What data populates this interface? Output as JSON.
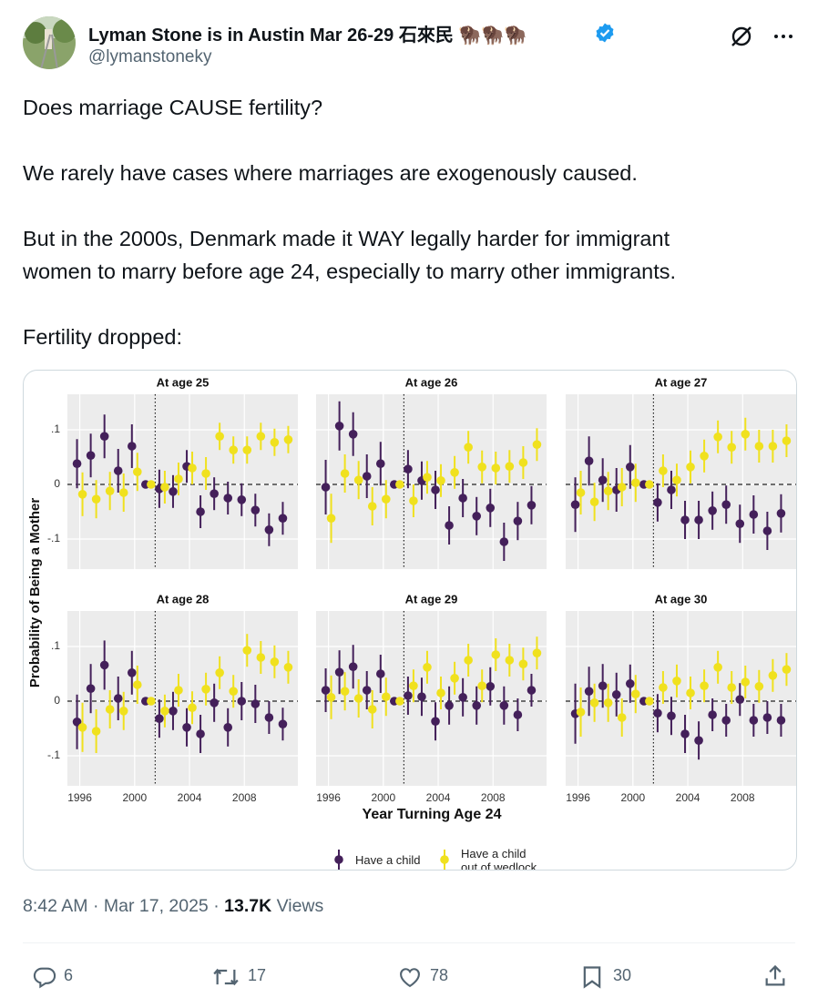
{
  "tweet": {
    "author": "Lyman Stone is in Austin Mar 26-29 石來民 🦬🦬🦬",
    "handle": "@lymanstoneky",
    "paragraphs": [
      [
        "Does marriage CAUSE fertility?"
      ],
      [
        "We rarely have cases where marriages are exogenously caused."
      ],
      [
        "But in the 2000s, Denmark made it WAY legally harder for immigrant",
        "women to marry before age 24, especially to marry other immigrants."
      ],
      [
        "Fertility dropped:"
      ]
    ],
    "timestamp": "8:42 AM · Mar 17, 2025 ·",
    "views_count": "13.7K",
    "views_label": "Views",
    "replies": 6,
    "reposts": 17,
    "likes": 78,
    "bookmarks": 30
  },
  "chart_data": {
    "type": "dot-errorbar",
    "ylabel": "Probability of Being a Mother",
    "xlabel": "Year Turning Age 24",
    "xlim": [
      1995.1,
      2011.9
    ],
    "ylim": [
      -0.155,
      0.165
    ],
    "xticks": [
      1996,
      2000,
      2004,
      2008
    ],
    "yticks": [
      {
        "value": -0.1,
        "label": "-.1"
      },
      0,
      {
        "value": 0.1,
        "label": ".1"
      }
    ],
    "vline": 2001.5,
    "hline": 0,
    "grid": true,
    "x": [
      1996,
      1997,
      1998,
      1999,
      2000,
      2001,
      2002,
      2003,
      2004,
      2005,
      2006,
      2007,
      2008,
      2009,
      2010,
      2011
    ],
    "series": [
      {
        "name": "Have a child",
        "color": "#44205a"
      },
      {
        "name": "Have a child out of wedlock",
        "color": "#f0e11e"
      }
    ],
    "panels": [
      {
        "title": "At age 25",
        "series": [
          {
            "values": [
              0.038,
              0.053,
              0.088,
              0.025,
              0.07,
              0,
              -0.008,
              -0.013,
              0.033,
              -0.05,
              -0.017,
              -0.025,
              -0.028,
              -0.047,
              -0.083,
              -0.062
            ],
            "errors": [
              0.045,
              0.04,
              0.04,
              0.04,
              0.04,
              0,
              0.035,
              0.03,
              0.03,
              0.03,
              0.03,
              0.03,
              0.03,
              0.03,
              0.03,
              0.03
            ]
          },
          {
            "values": [
              -0.018,
              -0.027,
              -0.012,
              -0.015,
              0.023,
              0,
              -0.005,
              0.01,
              0.03,
              0.02,
              0.088,
              0.063,
              0.063,
              0.088,
              0.077,
              0.082
            ],
            "errors": [
              0.04,
              0.035,
              0.035,
              0.035,
              0.035,
              0,
              0.03,
              0.03,
              0.03,
              0.03,
              0.025,
              0.025,
              0.025,
              0.025,
              0.025,
              0.025
            ]
          }
        ]
      },
      {
        "title": "At age 26",
        "series": [
          {
            "values": [
              -0.005,
              0.107,
              0.092,
              0.015,
              0.038,
              0,
              0.028,
              0.007,
              -0.01,
              -0.075,
              -0.025,
              -0.058,
              -0.043,
              -0.105,
              -0.067,
              -0.038
            ],
            "errors": [
              0.05,
              0.045,
              0.04,
              0.04,
              0.04,
              0,
              0.035,
              0.035,
              0.035,
              0.035,
              0.035,
              0.035,
              0.035,
              0.035,
              0.035,
              0.035
            ]
          },
          {
            "values": [
              -0.062,
              0.02,
              0.008,
              -0.04,
              -0.027,
              0,
              -0.03,
              0.013,
              0.007,
              0.022,
              0.068,
              0.032,
              0.03,
              0.033,
              0.04,
              0.073
            ],
            "errors": [
              0.045,
              0.035,
              0.035,
              0.035,
              0.035,
              0,
              0.03,
              0.03,
              0.03,
              0.03,
              0.03,
              0.03,
              0.03,
              0.03,
              0.03,
              0.03
            ]
          }
        ]
      },
      {
        "title": "At age 27",
        "series": [
          {
            "values": [
              -0.037,
              0.043,
              0.008,
              -0.01,
              0.032,
              0,
              -0.033,
              -0.01,
              -0.065,
              -0.065,
              -0.048,
              -0.037,
              -0.072,
              -0.055,
              -0.085,
              -0.053
            ],
            "errors": [
              0.05,
              0.045,
              0.04,
              0.04,
              0.04,
              0,
              0.035,
              0.035,
              0.035,
              0.035,
              0.035,
              0.035,
              0.035,
              0.035,
              0.035,
              0.035
            ]
          },
          {
            "values": [
              -0.015,
              -0.032,
              -0.012,
              -0.005,
              0.003,
              0,
              0.025,
              0.008,
              0.032,
              0.052,
              0.087,
              0.068,
              0.092,
              0.07,
              0.07,
              0.08
            ],
            "errors": [
              0.04,
              0.035,
              0.035,
              0.035,
              0.035,
              0,
              0.03,
              0.03,
              0.03,
              0.03,
              0.03,
              0.03,
              0.03,
              0.03,
              0.03,
              0.03
            ]
          }
        ]
      },
      {
        "title": "At age 28",
        "series": [
          {
            "values": [
              -0.038,
              0.023,
              0.066,
              0.005,
              0.052,
              0,
              -0.032,
              -0.018,
              -0.048,
              -0.06,
              -0.003,
              -0.048,
              0.0,
              -0.005,
              -0.03,
              -0.042
            ],
            "errors": [
              0.05,
              0.045,
              0.045,
              0.04,
              0.04,
              0,
              0.035,
              0.035,
              0.035,
              0.035,
              0.035,
              0.035,
              0.035,
              0.035,
              0.03,
              0.03
            ]
          },
          {
            "values": [
              -0.048,
              -0.055,
              -0.015,
              -0.018,
              0.03,
              0,
              -0.018,
              0.02,
              -0.012,
              0.022,
              0.052,
              0.018,
              0.093,
              0.08,
              0.072,
              0.062
            ],
            "errors": [
              0.045,
              0.04,
              0.035,
              0.035,
              0.035,
              0,
              0.03,
              0.03,
              0.03,
              0.03,
              0.03,
              0.03,
              0.03,
              0.03,
              0.03,
              0.03
            ]
          }
        ]
      },
      {
        "title": "At age 29",
        "series": [
          {
            "values": [
              0.02,
              0.053,
              0.063,
              0.02,
              0.05,
              0,
              0.01,
              0.008,
              -0.037,
              -0.008,
              0.007,
              -0.008,
              0.027,
              -0.008,
              -0.025,
              0.02
            ],
            "errors": [
              0.04,
              0.04,
              0.04,
              0.035,
              0.035,
              0,
              0.035,
              0.035,
              0.035,
              0.035,
              0.035,
              0.035,
              0.035,
              0.035,
              0.03,
              0.03
            ]
          },
          {
            "values": [
              0.007,
              0.018,
              0.005,
              -0.015,
              0.008,
              0,
              0.028,
              0.062,
              0.015,
              0.042,
              0.075,
              0.028,
              0.085,
              0.075,
              0.068,
              0.088
            ],
            "errors": [
              0.04,
              0.035,
              0.035,
              0.035,
              0.035,
              0,
              0.03,
              0.03,
              0.03,
              0.03,
              0.03,
              0.03,
              0.03,
              0.03,
              0.03,
              0.03
            ]
          }
        ]
      },
      {
        "title": "At age 30",
        "series": [
          {
            "values": [
              -0.023,
              0.018,
              0.028,
              0.012,
              0.032,
              0,
              -0.022,
              -0.027,
              -0.06,
              -0.072,
              -0.025,
              -0.035,
              0.003,
              -0.035,
              -0.03,
              -0.035
            ],
            "errors": [
              0.055,
              0.045,
              0.04,
              0.04,
              0.035,
              0,
              0.035,
              0.035,
              0.035,
              0.035,
              0.03,
              0.03,
              0.03,
              0.03,
              0.03,
              0.03
            ]
          },
          {
            "values": [
              -0.02,
              -0.003,
              -0.003,
              -0.03,
              0.013,
              0,
              0.025,
              0.037,
              0.015,
              0.028,
              0.062,
              0.025,
              0.035,
              0.027,
              0.047,
              0.058
            ],
            "errors": [
              0.045,
              0.035,
              0.035,
              0.035,
              0.035,
              0,
              0.03,
              0.03,
              0.03,
              0.03,
              0.03,
              0.03,
              0.03,
              0.03,
              0.03,
              0.03
            ]
          }
        ]
      }
    ]
  }
}
